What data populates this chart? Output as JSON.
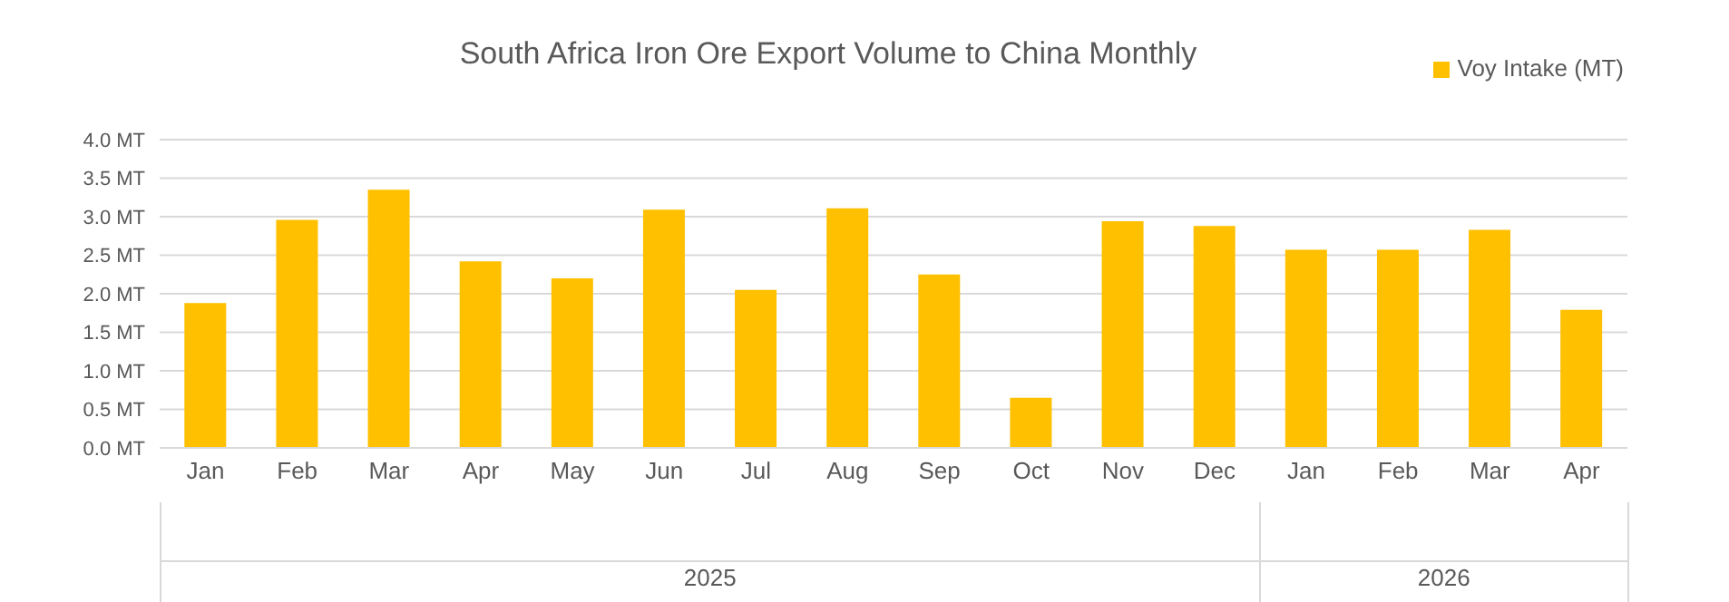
{
  "chart_data": {
    "type": "bar",
    "title": "South Africa Iron Ore Export Volume to China  Monthly",
    "categories": [
      "Jan",
      "Feb",
      "Mar",
      "Apr",
      "May",
      "Jun",
      "Jul",
      "Aug",
      "Sep",
      "Oct",
      "Nov",
      "Dec",
      "Jan",
      "Feb",
      "Mar",
      "Apr"
    ],
    "series": [
      {
        "name": "Voy Intake (MT)",
        "color": "#ffc000",
        "values": [
          1.88,
          2.96,
          3.35,
          2.42,
          2.2,
          3.09,
          2.05,
          3.11,
          2.25,
          0.65,
          2.94,
          2.88,
          2.57,
          2.57,
          2.83,
          1.79
        ]
      }
    ],
    "ylim": [
      0,
      4
    ],
    "yticks": [
      {
        "value": 0,
        "label": "0.0 MT"
      },
      {
        "value": 0.5,
        "label": "0.5 MT"
      },
      {
        "value": 1,
        "label": "1.0 MT"
      },
      {
        "value": 1.5,
        "label": "1.5 MT"
      },
      {
        "value": 2,
        "label": "2.0 MT"
      },
      {
        "value": 2.5,
        "label": "2.5 MT"
      },
      {
        "value": 3,
        "label": "3.0 MT"
      },
      {
        "value": 3.5,
        "label": "3.5 MT"
      },
      {
        "value": 4,
        "label": "4.0 MT"
      }
    ],
    "annotations": [
      "2025",
      "2026"
    ],
    "grid": "y",
    "legend": "top right"
  }
}
